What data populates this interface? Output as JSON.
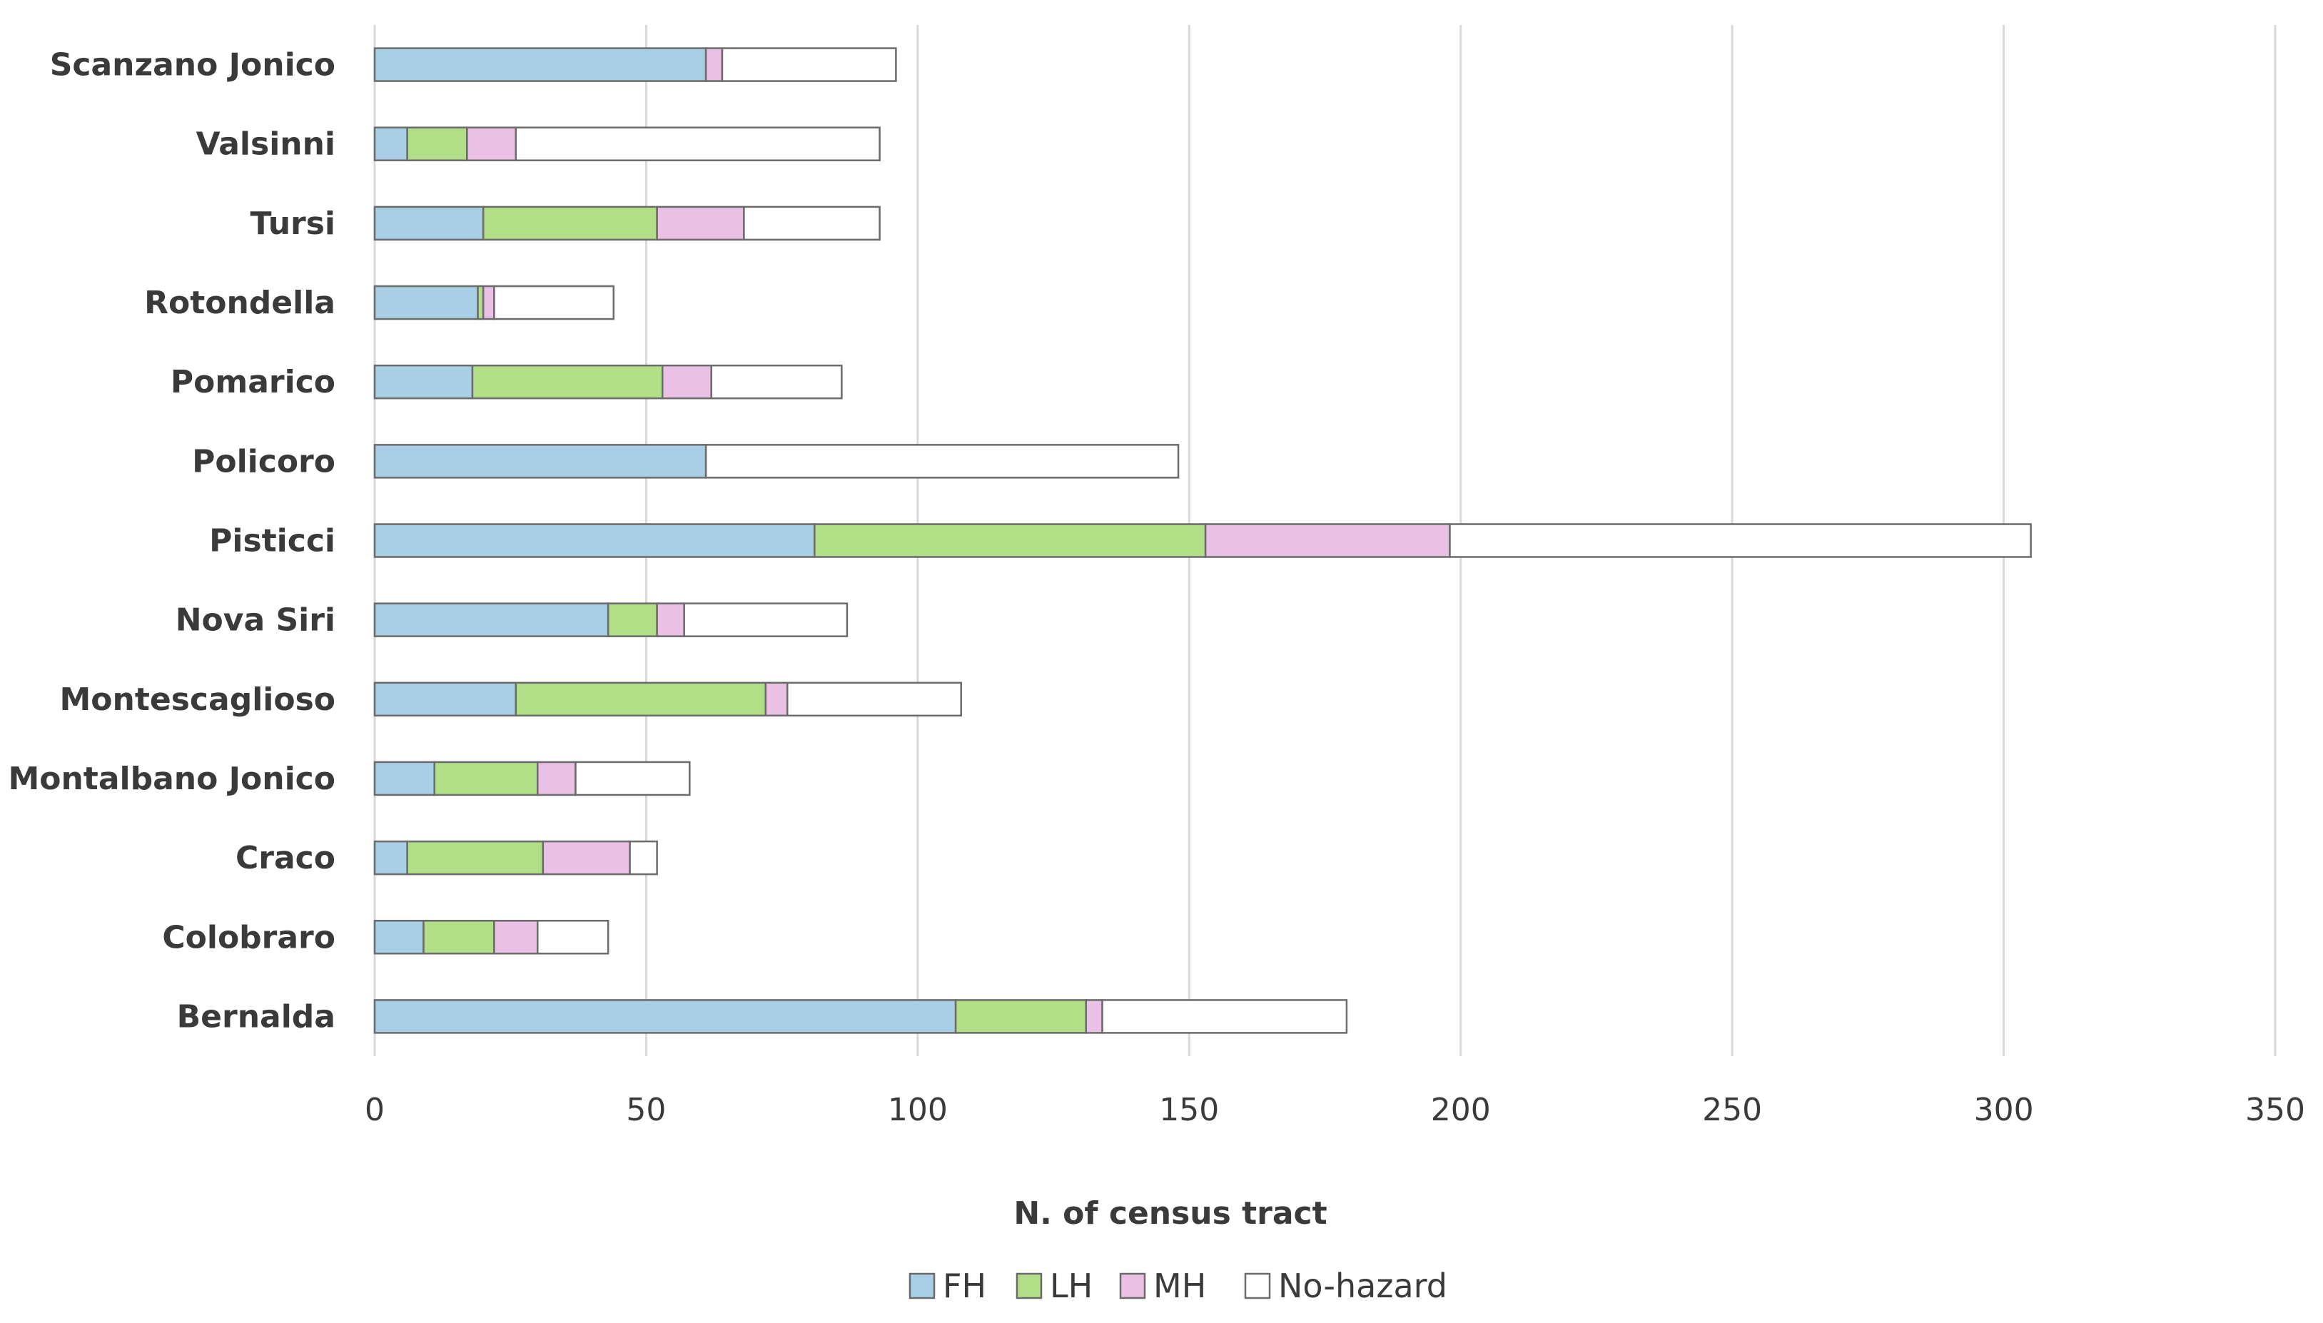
{
  "chart_data": {
    "type": "bar",
    "orientation": "horizontal",
    "stacked": true,
    "title": "",
    "xlabel": "N. of census tract",
    "ylabel": "",
    "xlim": [
      0,
      350
    ],
    "xticks": [
      0,
      50,
      100,
      150,
      200,
      250,
      300,
      350
    ],
    "grid": true,
    "legend_position": "bottom",
    "categories": [
      "Scanzano Jonico",
      "Valsinni",
      "Tursi",
      "Rotondella",
      "Pomarico",
      "Policoro",
      "Pisticci",
      "Nova Siri",
      "Montescaglioso",
      "Montalbano Jonico",
      "Craco",
      "Colobraro",
      "Bernalda"
    ],
    "series": [
      {
        "name": "FH",
        "color": "#a9cfe6",
        "values": [
          61,
          6,
          20,
          19,
          18,
          61,
          81,
          43,
          26,
          11,
          6,
          9,
          107
        ]
      },
      {
        "name": "LH",
        "color": "#b2de87",
        "values": [
          0,
          11,
          32,
          1,
          35,
          0,
          72,
          9,
          46,
          19,
          25,
          13,
          24
        ]
      },
      {
        "name": "MH",
        "color": "#eac0e4",
        "values": [
          3,
          9,
          16,
          2,
          9,
          0,
          45,
          5,
          4,
          7,
          16,
          8,
          3
        ]
      },
      {
        "name": "No-hazard",
        "color": "#ffffff",
        "values": [
          32,
          67,
          25,
          22,
          24,
          87,
          107,
          30,
          32,
          21,
          5,
          13,
          45
        ]
      }
    ]
  }
}
